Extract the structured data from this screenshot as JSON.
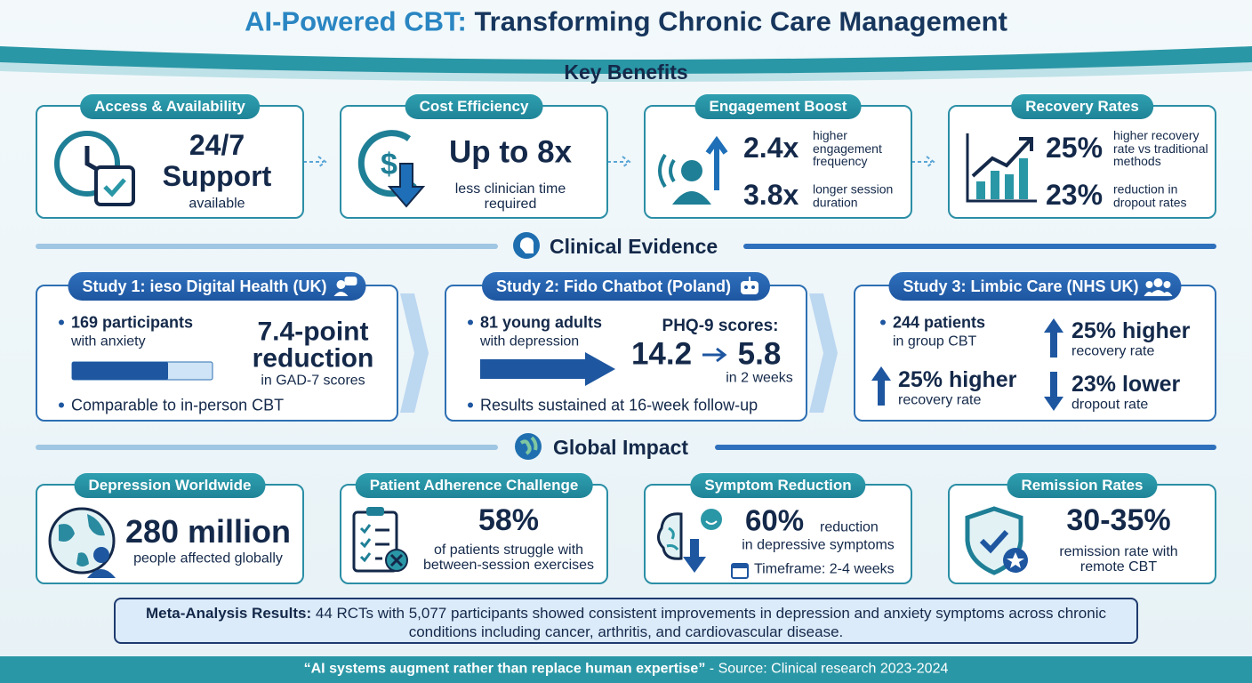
{
  "title": {
    "highlight": "AI-Powered CBT:",
    "rest": "Transforming Chronic Care Management"
  },
  "benefits": {
    "heading": "Key Benefits",
    "cards": [
      {
        "label": "Access & Availability",
        "headline": "24/7",
        "headline2": "Support",
        "caption": "available"
      },
      {
        "label": "Cost Efficiency",
        "headline": "Up to 8x",
        "caption": "less clinician time required"
      },
      {
        "label": "Engagement Boost",
        "stats": [
          {
            "value": "2.4x",
            "text": "higher engagement frequency"
          },
          {
            "value": "3.8x",
            "text": "longer session duration"
          }
        ]
      },
      {
        "label": "Recovery Rates",
        "stats": [
          {
            "value": "25%",
            "text": "higher recovery rate vs traditional methods"
          },
          {
            "value": "23%",
            "text": "reduction in dropout rates"
          }
        ]
      }
    ]
  },
  "evidence": {
    "heading": "Clinical Evidence",
    "studies": [
      {
        "title": "Study 1: ieso Digital Health (UK)",
        "point": "169 participants",
        "point_detail": "with anxiety",
        "result": "7.4-point",
        "result2": "reduction",
        "result_detail": "in GAD-7 scores",
        "note": "Comparable to in-person CBT"
      },
      {
        "title": "Study 2: Fido Chatbot (Poland)",
        "point": "81 young adults",
        "point_detail": "with depression",
        "metric_label": "PHQ-9 scores:",
        "before": "14.2",
        "after": "5.8",
        "timeframe": "in 2 weeks",
        "note": "Results sustained at 16-week follow-up"
      },
      {
        "title": "Study 3: Limbic Care (NHS UK)",
        "point": "244 patients",
        "point_detail": "in group CBT",
        "left_value": "25% higher",
        "left_detail": "recovery rate",
        "right": [
          {
            "value": "25% higher",
            "detail": "recovery rate"
          },
          {
            "value": "23% lower",
            "detail": "dropout rate"
          }
        ]
      }
    ]
  },
  "impact": {
    "heading": "Global Impact",
    "cards": [
      {
        "label": "Depression Worldwide",
        "value": "280 million",
        "caption": "people affected globally"
      },
      {
        "label": "Patient Adherence Challenge",
        "value": "58%",
        "caption": "of patients struggle with between-session exercises"
      },
      {
        "label": "Symptom Reduction",
        "value": "60%",
        "suffix": "reduction",
        "caption": "in depressive symptoms",
        "timeframe": "Timeframe: 2-4 weeks"
      },
      {
        "label": "Remission Rates",
        "value": "30-35%",
        "caption": "remission rate with remote CBT"
      }
    ]
  },
  "meta": {
    "label": "Meta-Analysis Results:",
    "text": "44 RCTs with 5,077 participants showed consistent improvements in depression and anxiety symptoms across chronic conditions including cancer, arthritis, and cardiovascular disease."
  },
  "footer": {
    "quote": "“AI systems augment rather than replace human expertise”",
    "source": "- Source: Clinical research 2023-2024"
  }
}
